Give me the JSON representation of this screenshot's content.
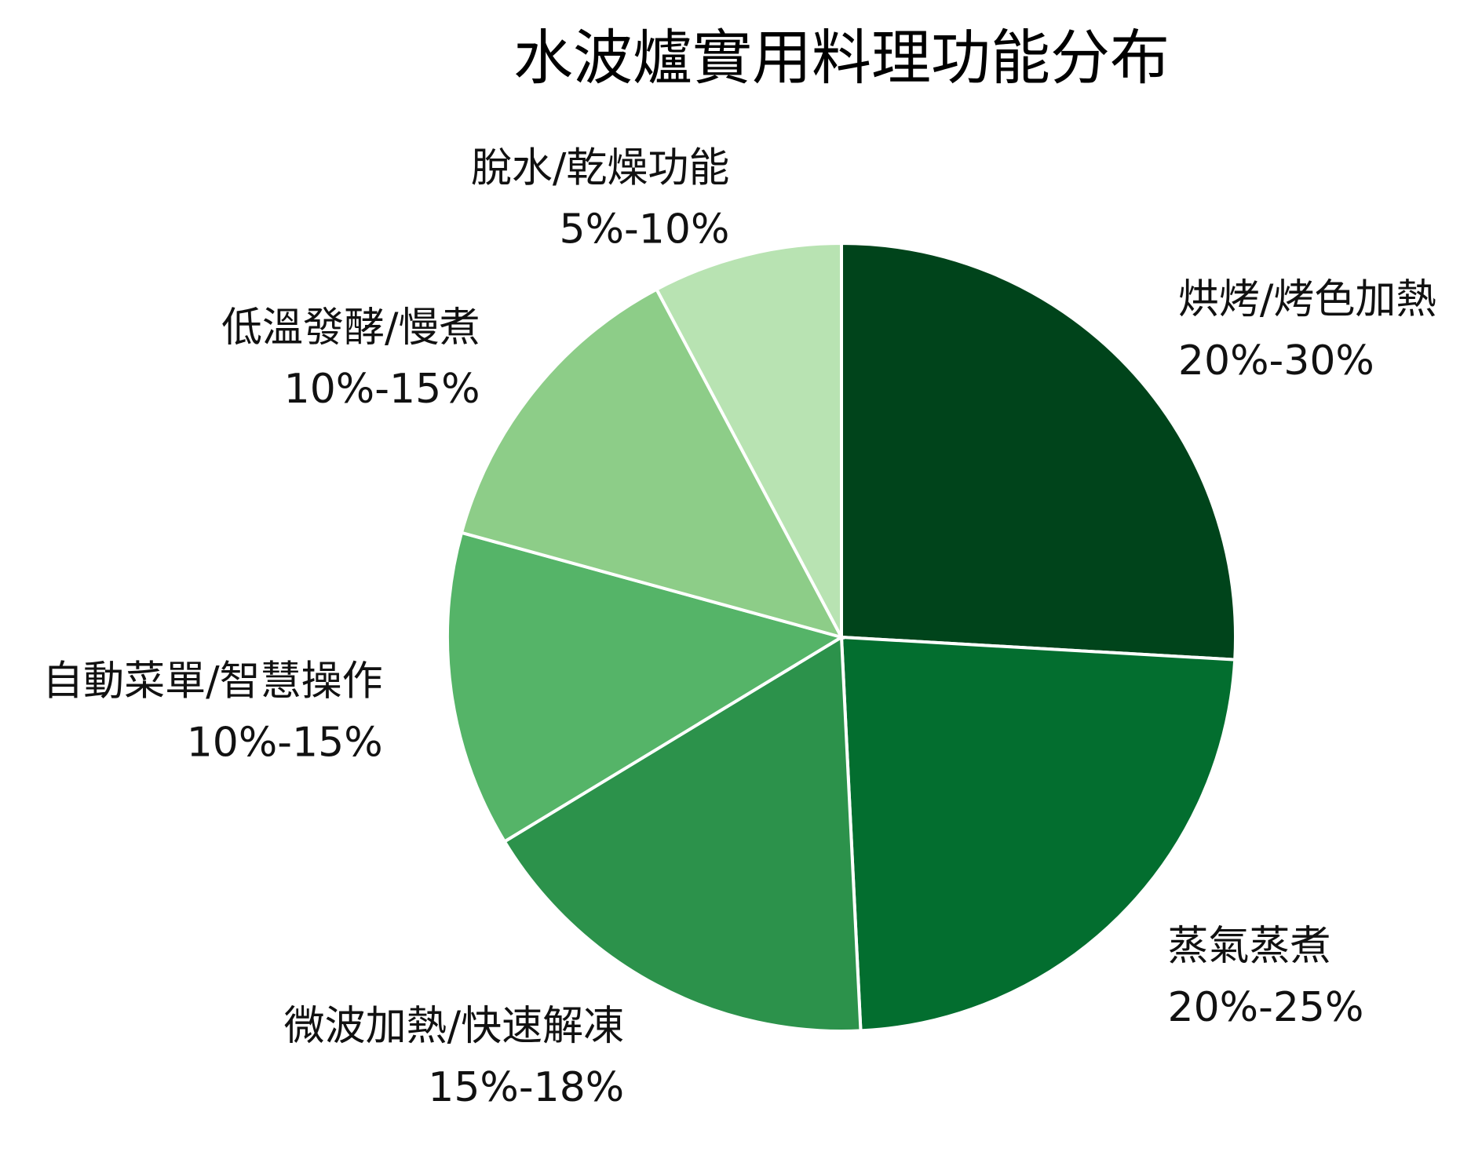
{
  "chart_data": {
    "type": "pie",
    "title": "水波爐實用料理功能分布",
    "start_angle_deg": 0,
    "direction": "clockwise",
    "slices": [
      {
        "category": "烘烤/烤色加熱",
        "range_label": "20%-30%",
        "value": 25.0,
        "color": "#00441b"
      },
      {
        "category": "蒸氣蒸煮",
        "range_label": "20%-25%",
        "value": 22.5,
        "color": "#036e2f"
      },
      {
        "category": "微波加熱/快速解凍",
        "range_label": "15%-18%",
        "value": 16.5,
        "color": "#2c924b"
      },
      {
        "category": "自動菜單/智慧操作",
        "range_label": "10%-15%",
        "value": 12.5,
        "color": "#55b468"
      },
      {
        "category": "低溫發酵/慢煮",
        "range_label": "10%-15%",
        "value": 12.5,
        "color": "#8dcd88"
      },
      {
        "category": "脫水/乾燥功能",
        "range_label": "5%-10%",
        "value": 7.5,
        "color": "#b8e3b2"
      }
    ]
  }
}
